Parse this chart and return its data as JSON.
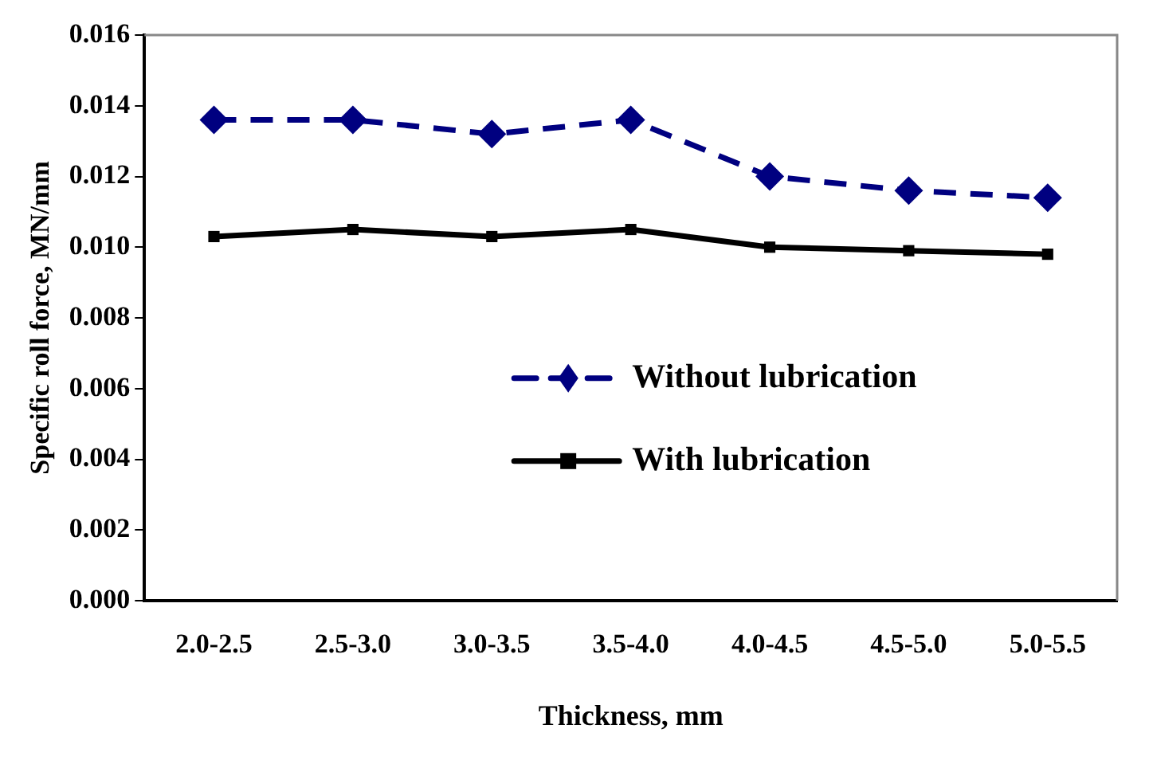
{
  "chart_data": {
    "type": "line",
    "xlabel": "Thickness, mm",
    "ylabel": "Specific roll force, MN/mm",
    "categories": [
      "2.0-2.5",
      "2.5-3.0",
      "3.0-3.5",
      "3.5-4.0",
      "4.0-4.5",
      "4.5-5.0",
      "5.0-5.5"
    ],
    "series": [
      {
        "name": "Without lubrication",
        "color": "#000080",
        "marker": "diamond",
        "line_style": "dashed",
        "values": [
          0.0136,
          0.0136,
          0.0132,
          0.0136,
          0.012,
          0.0116,
          0.0114
        ]
      },
      {
        "name": "With lubrication",
        "color": "#000000",
        "marker": "square",
        "line_style": "solid",
        "values": [
          0.0103,
          0.0105,
          0.0103,
          0.0105,
          0.01,
          0.0099,
          0.0098
        ]
      }
    ],
    "ylim": [
      0,
      0.016
    ],
    "yticks": [
      {
        "value": 0,
        "label": "0.000"
      },
      {
        "value": 0.002,
        "label": "0.002"
      },
      {
        "value": 0.004,
        "label": "0.004"
      },
      {
        "value": 0.006,
        "label": "0.006"
      },
      {
        "value": 0.008,
        "label": "0.008"
      },
      {
        "value": 0.01,
        "label": "0.010"
      },
      {
        "value": 0.012,
        "label": "0.012"
      },
      {
        "value": 0.014,
        "label": "0.014"
      },
      {
        "value": 0.016,
        "label": "0.016"
      }
    ],
    "grid": false,
    "legend": "center"
  }
}
